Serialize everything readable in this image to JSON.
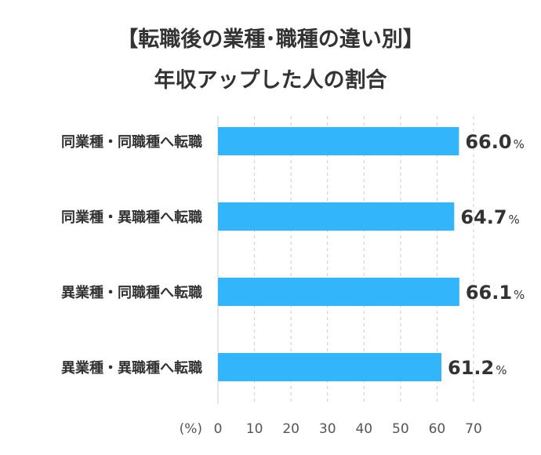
{
  "chart_data": {
    "type": "bar",
    "orientation": "horizontal",
    "title_line1": "【転職後の業種･職種の違い別】",
    "title_line2": "年収アップした人の割合",
    "categories": [
      "同業種・同職種へ転職",
      "同業種・異職種へ転職",
      "異業種・同職種へ転職",
      "異業種・異職種へ転職"
    ],
    "values": [
      66.0,
      64.7,
      66.1,
      61.2
    ],
    "value_labels": [
      "66.0",
      "64.7",
      "66.1",
      "61.2"
    ],
    "value_suffix": "%",
    "xlim": [
      0,
      70
    ],
    "xticks": [
      "0",
      "10",
      "20",
      "30",
      "40",
      "50",
      "60",
      "70"
    ],
    "xunit": "(%)",
    "grid": "vertical-dashed",
    "bar_color": "#33b5fb",
    "grid_color": "#cccccc"
  }
}
